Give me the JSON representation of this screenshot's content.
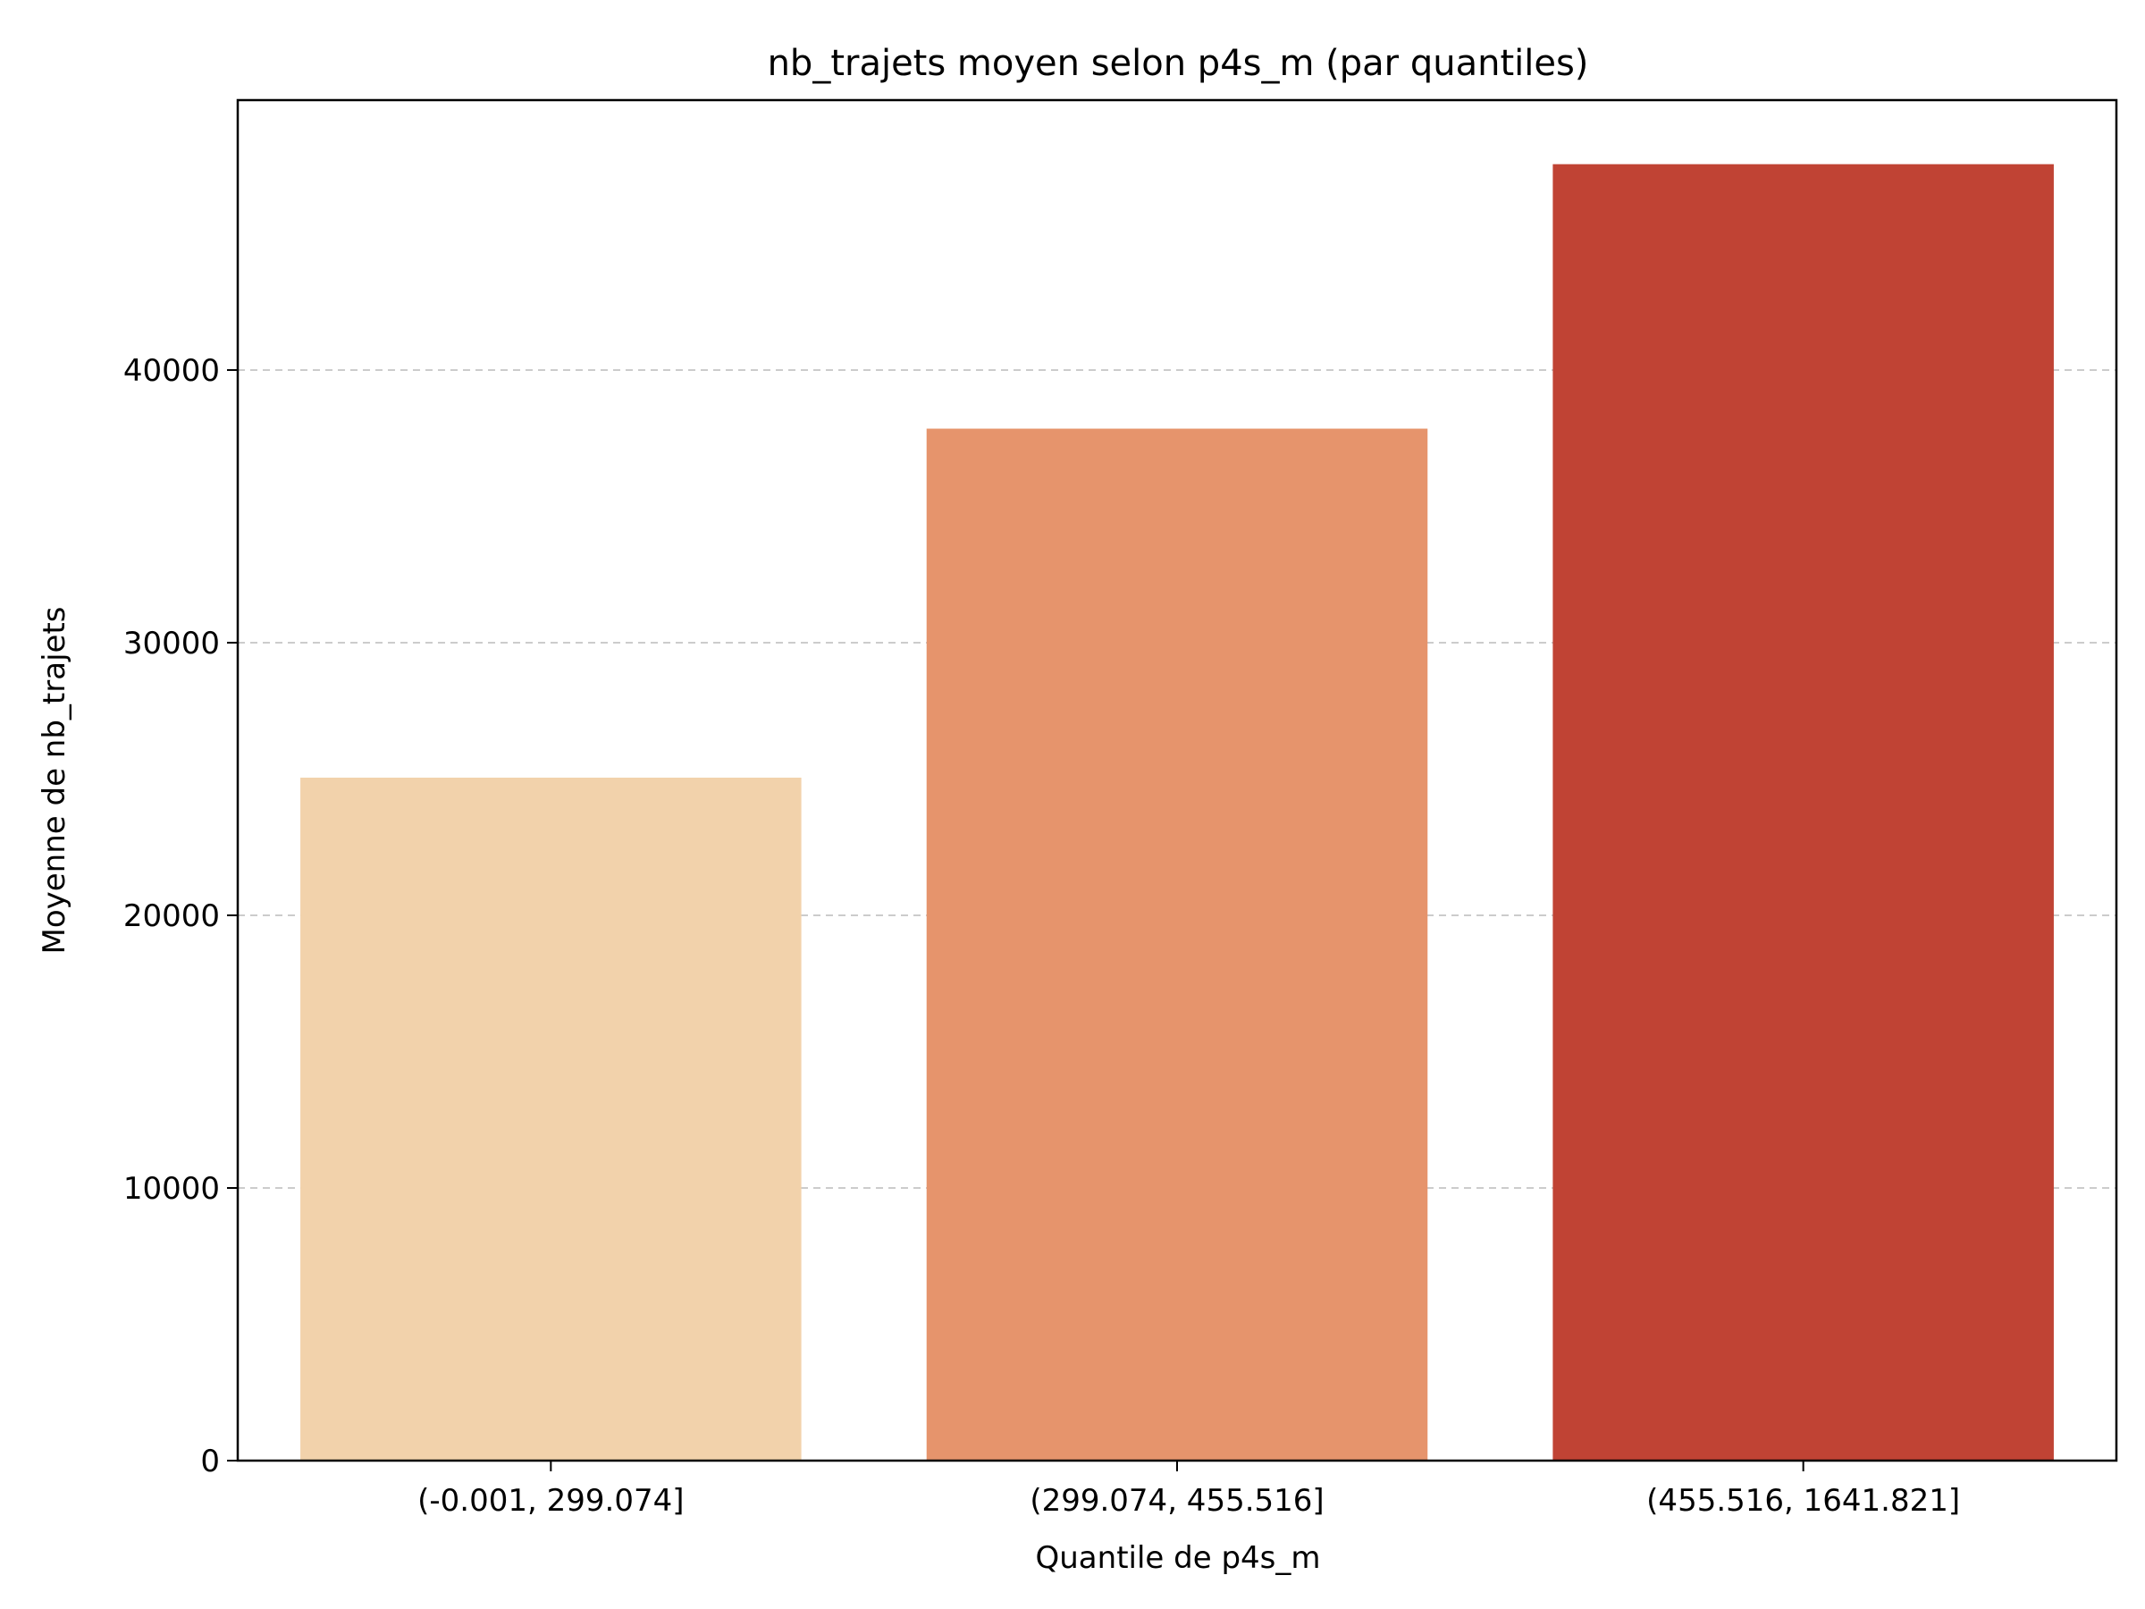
{
  "chart_data": {
    "type": "bar",
    "title": "nb_trajets moyen selon p4s_m (par quantiles)",
    "xlabel": "Quantile de p4s_m",
    "ylabel": "Moyenne de nb_trajets",
    "categories": [
      "(-0.001, 299.074]",
      "(299.074, 455.516]",
      "(455.516, 1641.821]"
    ],
    "values": [
      25050,
      37850,
      47550
    ],
    "bar_colors": [
      "#f2d2ab",
      "#e6946c",
      "#c04334"
    ],
    "ylim": [
      0,
      49900
    ],
    "yticks": [
      0,
      10000,
      20000,
      30000,
      40000
    ],
    "grid": "y-dashed",
    "grid_color": "#cccccc"
  }
}
